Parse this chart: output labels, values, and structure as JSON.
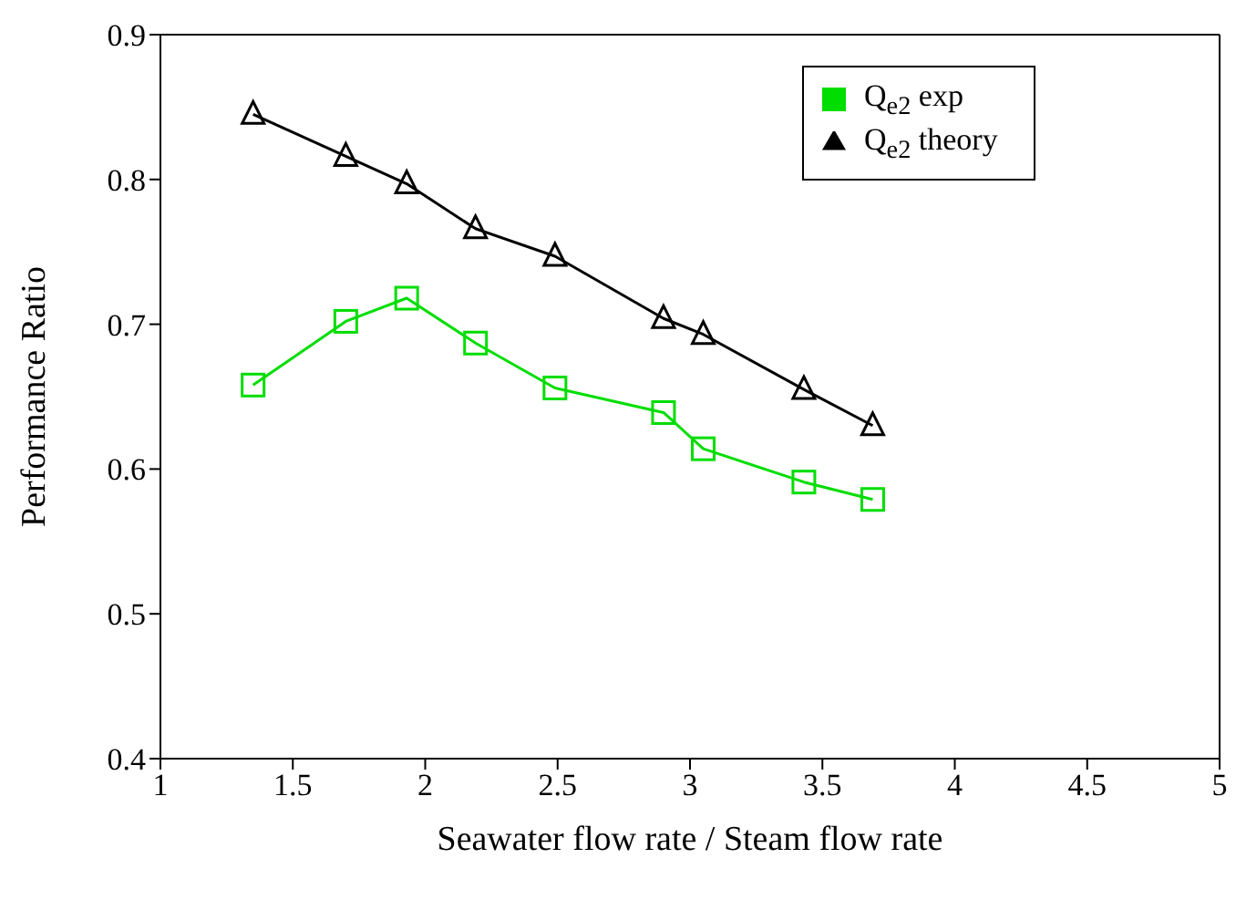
{
  "chart_data": {
    "type": "line",
    "xlabel": "Seawater flow rate / Steam flow rate",
    "ylabel": "Performance Ratio",
    "x": [
      1.35,
      1.7,
      1.93,
      2.19,
      2.49,
      2.9,
      3.05,
      3.43,
      3.69
    ],
    "series": [
      {
        "name": "Q$_{e2}$ exp",
        "color": "#00dd00",
        "marker": "square",
        "values": [
          0.658,
          0.702,
          0.718,
          0.687,
          0.656,
          0.639,
          0.614,
          0.591,
          0.579
        ]
      },
      {
        "name": "Q$_{e2}$ theory",
        "color": "#000000",
        "marker": "triangle",
        "values": [
          0.845,
          0.816,
          0.797,
          0.766,
          0.747,
          0.704,
          0.693,
          0.655,
          0.63
        ]
      }
    ],
    "xlim": [
      1,
      5
    ],
    "xticks": [
      1,
      1.5,
      2,
      2.5,
      3,
      3.5,
      4,
      4.5,
      5
    ],
    "ylim": [
      0.4,
      0.9
    ],
    "yticks": [
      0.4,
      0.5,
      0.6,
      0.7,
      0.8,
      0.9
    ],
    "grid": false,
    "legend": "top right",
    "line_style": "solid"
  }
}
